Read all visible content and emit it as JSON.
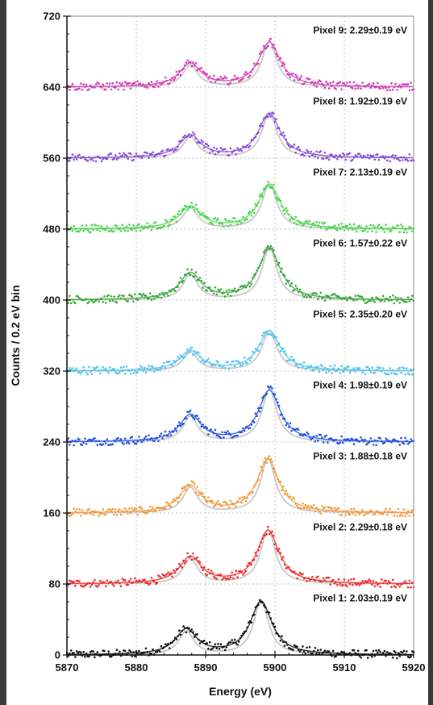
{
  "chart_data": {
    "type": "scatter",
    "xlabel": "Energy (eV)",
    "ylabel": "Counts / 0.2 eV bin",
    "xlim": [
      5870,
      5920
    ],
    "ylim": [
      0,
      720
    ],
    "x_ticks": [
      "5870",
      "5880",
      "5890",
      "5900",
      "5910",
      "5920"
    ],
    "y_ticks": [
      "0",
      "80",
      "160",
      "240",
      "320",
      "400",
      "480",
      "560",
      "640",
      "720"
    ],
    "grid": true,
    "reference_curve_color": "#c8c8c8",
    "series": [
      {
        "label": "Pixel 1: 2.03±0.19 eV",
        "offset": 0,
        "color": "#111111",
        "peak1_center": 5887.2,
        "peak1_height": 28,
        "peak2_center": 5898.0,
        "peak2_height": 60
      },
      {
        "label": "Pixel 2: 2.29±0.18 eV",
        "offset": 80,
        "color": "#ee2a2a",
        "peak1_center": 5887.8,
        "peak1_height": 30,
        "peak2_center": 5899.0,
        "peak2_height": 60
      },
      {
        "label": "Pixel 3: 1.88±0.18 eV",
        "offset": 160,
        "color": "#f39a3b",
        "peak1_center": 5887.8,
        "peak1_height": 30,
        "peak2_center": 5899.0,
        "peak2_height": 60
      },
      {
        "label": "Pixel 4: 1.98±0.19 eV",
        "offset": 240,
        "color": "#1f4fe0",
        "peak1_center": 5887.8,
        "peak1_height": 30,
        "peak2_center": 5899.2,
        "peak2_height": 58
      },
      {
        "label": "Pixel 5: 2.35±0.20 eV",
        "offset": 320,
        "color": "#4ec3ec",
        "peak1_center": 5887.8,
        "peak1_height": 22,
        "peak2_center": 5899.2,
        "peak2_height": 45
      },
      {
        "label": "Pixel 6: 1.57±0.22 eV",
        "offset": 400,
        "color": "#3aa53a",
        "peak1_center": 5887.8,
        "peak1_height": 30,
        "peak2_center": 5899.2,
        "peak2_height": 58
      },
      {
        "label": "Pixel 7: 2.13±0.19 eV",
        "offset": 480,
        "color": "#46d64a",
        "peak1_center": 5887.8,
        "peak1_height": 25,
        "peak2_center": 5899.2,
        "peak2_height": 50
      },
      {
        "label": "Pixel 8: 1.92±0.19 eV",
        "offset": 560,
        "color": "#8a4ad6",
        "peak1_center": 5887.8,
        "peak1_height": 25,
        "peak2_center": 5899.2,
        "peak2_height": 50
      },
      {
        "label": "Pixel 9: 2.29±0.19 eV",
        "offset": 640,
        "color": "#d43ab6",
        "peak1_center": 5887.8,
        "peak1_height": 26,
        "peak2_center": 5899.2,
        "peak2_height": 50
      }
    ]
  }
}
